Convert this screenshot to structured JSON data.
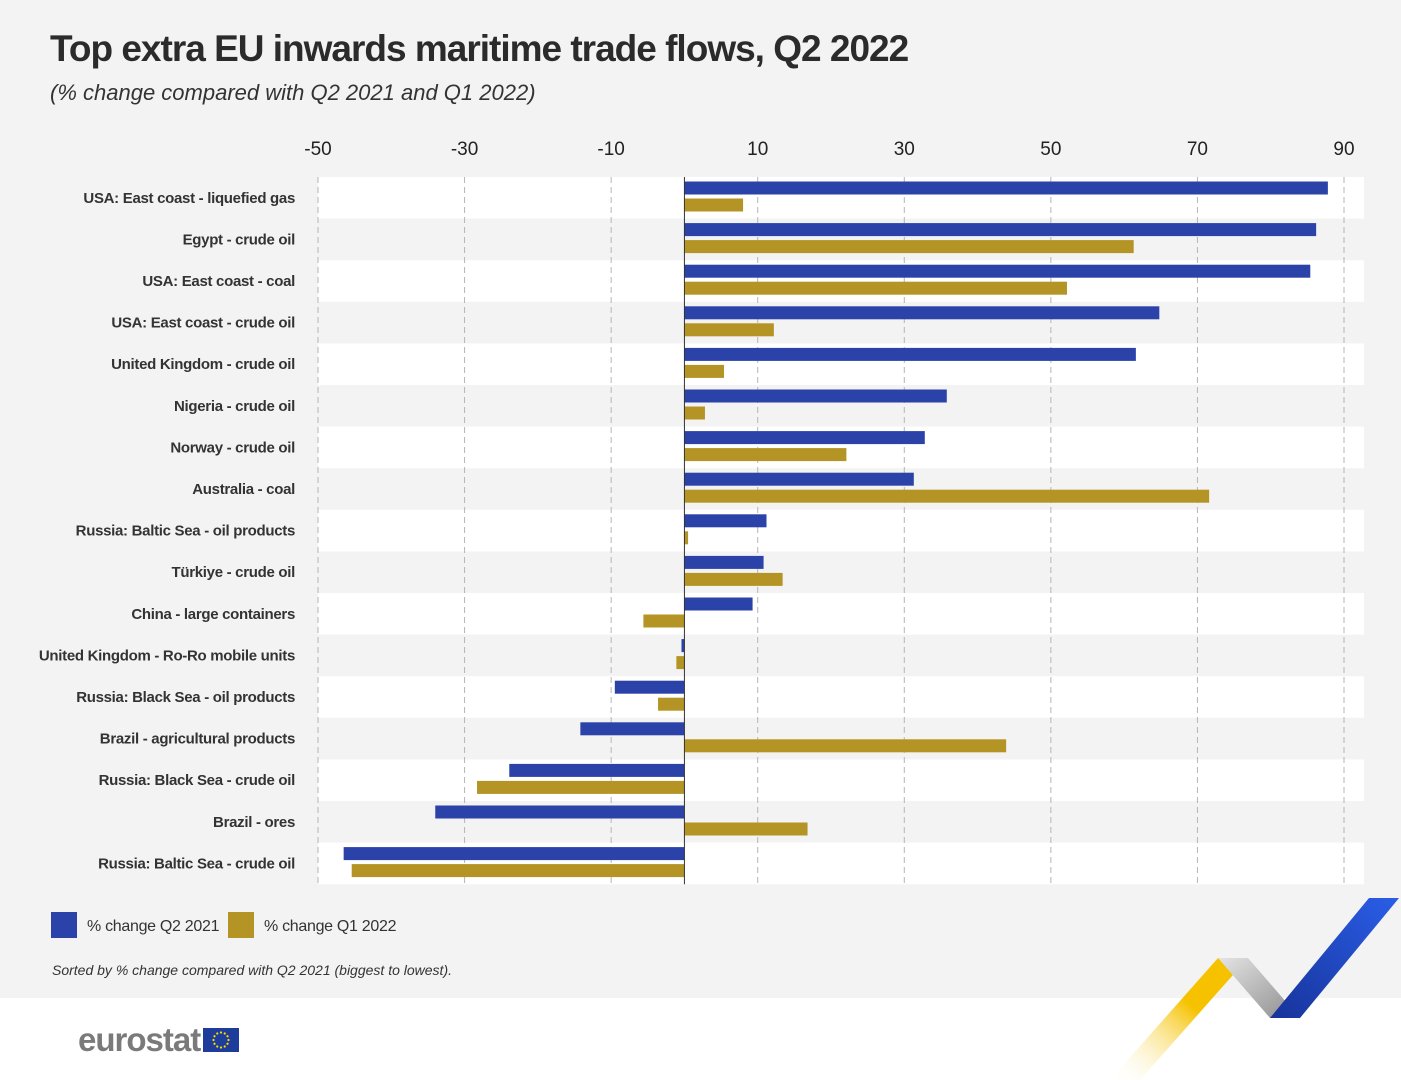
{
  "title": "Top extra EU inwards maritime trade flows, Q2 2022",
  "subtitle": "(% change compared with Q2 2021 and Q1 2022)",
  "note": "Sorted by % change compared with Q2 2021 (biggest to lowest).",
  "logo": {
    "text": "eurostat"
  },
  "colors": {
    "q2_2021": "#2b43a8",
    "q1_2022": "#b49424",
    "panel_bg": "#f3f3f3",
    "band": "#ffffff"
  },
  "chart_data": {
    "type": "bar",
    "orientation": "horizontal",
    "title": "Top extra EU inwards maritime trade flows, Q2 2022",
    "subtitle": "(% change compared with Q2 2021 and Q1 2022)",
    "xlim": [
      -50,
      90
    ],
    "ticks": [
      -50,
      -30,
      -10,
      10,
      30,
      50,
      70,
      90
    ],
    "grid": true,
    "legend_position": "bottom-left",
    "categories": [
      "USA: East coast - liquefied gas",
      "Egypt - crude oil",
      "USA: East coast - coal",
      "USA: East coast - crude oil",
      "United Kingdom - crude oil",
      "Nigeria - crude oil",
      "Norway - crude oil",
      "Australia - coal",
      "Russia: Baltic Sea - oil products",
      "Türkiye - crude oil",
      "China - large containers",
      "United Kingdom - Ro-Ro mobile units",
      "Russia: Black Sea - oil products",
      "Brazil - agricultural products",
      "Russia: Black Sea - crude oil",
      "Brazil - ores",
      "Russia: Baltic Sea - crude oil"
    ],
    "series": [
      {
        "name": "% change Q2 2021",
        "color": "#2b43a8",
        "values": [
          87.8,
          86.2,
          85.4,
          64.8,
          61.6,
          35.8,
          32.8,
          31.3,
          11.2,
          10.8,
          9.3,
          -0.4,
          -9.5,
          -14.2,
          -23.9,
          -34.0,
          -46.5
        ]
      },
      {
        "name": "% change Q1 2022",
        "color": "#b49424",
        "values": [
          8.0,
          61.3,
          52.2,
          12.2,
          5.4,
          2.8,
          22.1,
          71.6,
          0.5,
          13.4,
          -5.6,
          -1.1,
          -3.6,
          43.9,
          -28.3,
          16.8,
          -45.4
        ]
      }
    ]
  }
}
